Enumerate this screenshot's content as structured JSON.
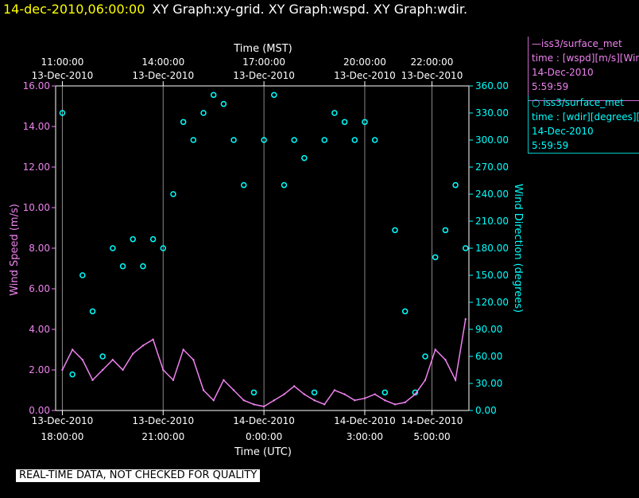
{
  "header": {
    "time": "14-dec-2010,06:00:00",
    "graphs": "XY Graph:xy-grid.  XY Graph:wspd.  XY Graph:wdir."
  },
  "legend": {
    "wspd": {
      "title": "—iss3/surface_met",
      "line1": "time : [wspd][m/s][Wind",
      "line2": "14-Dec-2010",
      "line3": "5:59:59"
    },
    "wdir": {
      "title": "○ iss3/surface_met",
      "line1": "time : [wdir][degrees][W",
      "line2": "14-Dec-2010",
      "line3": "5:59:59"
    }
  },
  "notice": "REAL-TIME DATA, NOT CHECKED FOR QUALITY",
  "colors": {
    "wspd": "#ee82ee",
    "wdir": "#00ffff",
    "title_time": "#ffff00"
  },
  "chart_data": {
    "type": "line",
    "title": "",
    "xlabel_top": "Time (MST)",
    "xlabel_bottom": "Time (UTC)",
    "ylabel_left": "Wind Speed (m/s)",
    "ylabel_right": "Wind Direction (degrees)",
    "xlim_utc_hours": [
      17.8,
      30.1
    ],
    "ylim_left": [
      0,
      16
    ],
    "ylim_right": [
      0,
      360
    ],
    "left_ticks": [
      "0.00",
      "2.00",
      "4.00",
      "6.00",
      "8.00",
      "10.00",
      "12.00",
      "14.00",
      "16.00"
    ],
    "right_ticks": [
      "0.00",
      "30.00",
      "60.00",
      "90.00",
      "120.00",
      "150.00",
      "180.00",
      "210.00",
      "240.00",
      "270.00",
      "300.00",
      "330.00",
      "360.00"
    ],
    "top_ticks": [
      {
        "hour": 18,
        "time": "11:00:00",
        "date": "13-Dec-2010"
      },
      {
        "hour": 21,
        "time": "14:00:00",
        "date": "13-Dec-2010"
      },
      {
        "hour": 24,
        "time": "17:00:00",
        "date": "13-Dec-2010"
      },
      {
        "hour": 27,
        "time": "20:00:00",
        "date": "13-Dec-2010"
      },
      {
        "hour": 29,
        "time": "22:00:00",
        "date": "13-Dec-2010"
      }
    ],
    "bottom_ticks": [
      {
        "hour": 18,
        "date": "13-Dec-2010",
        "time": "18:00:00"
      },
      {
        "hour": 21,
        "date": "13-Dec-2010",
        "time": "21:00:00"
      },
      {
        "hour": 24,
        "date": "14-Dec-2010",
        "time": "0:00:00"
      },
      {
        "hour": 27,
        "date": "14-Dec-2010",
        "time": "3:00:00"
      },
      {
        "hour": 29,
        "date": "14-Dec-2010",
        "time": "5:00:00"
      }
    ],
    "grid": true,
    "series": [
      {
        "name": "iss3/surface_met wspd",
        "axis": "left",
        "x": [
          18.0,
          18.3,
          18.6,
          18.9,
          19.2,
          19.5,
          19.8,
          20.1,
          20.4,
          20.7,
          21.0,
          21.3,
          21.6,
          21.9,
          22.2,
          22.5,
          22.8,
          23.1,
          23.4,
          23.7,
          24.0,
          24.3,
          24.6,
          24.9,
          25.2,
          25.5,
          25.8,
          26.1,
          26.4,
          26.7,
          27.0,
          27.3,
          27.6,
          27.9,
          28.2,
          28.5,
          28.8,
          29.1,
          29.4,
          29.7,
          30.0
        ],
        "values": [
          2.0,
          3.0,
          2.5,
          1.5,
          2.0,
          2.5,
          2.0,
          2.8,
          3.2,
          3.5,
          2.0,
          1.5,
          3.0,
          2.5,
          1.0,
          0.5,
          1.5,
          1.0,
          0.5,
          0.3,
          0.2,
          0.5,
          0.8,
          1.2,
          0.8,
          0.5,
          0.3,
          1.0,
          0.8,
          0.5,
          0.6,
          0.8,
          0.5,
          0.3,
          0.4,
          0.8,
          1.5,
          3.0,
          2.5,
          1.5,
          4.5
        ]
      },
      {
        "name": "iss3/surface_met wdir",
        "axis": "right",
        "x": [
          18.0,
          18.3,
          18.6,
          18.9,
          19.2,
          19.5,
          19.8,
          20.1,
          20.4,
          20.7,
          21.0,
          21.3,
          21.6,
          21.9,
          22.2,
          22.5,
          22.8,
          23.1,
          23.4,
          23.7,
          24.0,
          24.3,
          24.6,
          24.9,
          25.2,
          25.5,
          25.8,
          26.1,
          26.4,
          26.7,
          27.0,
          27.3,
          27.6,
          27.9,
          28.2,
          28.5,
          28.8,
          29.1,
          29.4,
          29.7,
          30.0
        ],
        "values": [
          330,
          40,
          150,
          110,
          60,
          180,
          160,
          190,
          160,
          190,
          180,
          240,
          320,
          300,
          330,
          350,
          340,
          300,
          250,
          20,
          300,
          350,
          250,
          300,
          280,
          20,
          300,
          330,
          320,
          300,
          320,
          300,
          20,
          200,
          110,
          20,
          60,
          170,
          200,
          250,
          180
        ]
      }
    ]
  }
}
